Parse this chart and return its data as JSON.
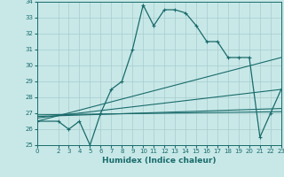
{
  "title": "",
  "xlabel": "Humidex (Indice chaleur)",
  "xlim": [
    0,
    23
  ],
  "ylim": [
    25,
    34
  ],
  "yticks": [
    25,
    26,
    27,
    28,
    29,
    30,
    31,
    32,
    33,
    34
  ],
  "xticks": [
    0,
    2,
    3,
    4,
    5,
    6,
    7,
    8,
    9,
    10,
    11,
    12,
    13,
    14,
    15,
    16,
    17,
    18,
    19,
    20,
    21,
    22,
    23
  ],
  "bg_color": "#c8e8e8",
  "grid_color": "#a8cccc",
  "line_color": "#1a6b6b",
  "line1_x": [
    0,
    2,
    3,
    4,
    5,
    6,
    7,
    8,
    9,
    10,
    11,
    12,
    13,
    14,
    15,
    16,
    17,
    18,
    19,
    20,
    21,
    22,
    23
  ],
  "line1_y": [
    26.5,
    26.5,
    26.0,
    26.5,
    25.0,
    27.0,
    28.5,
    29.0,
    31.0,
    33.8,
    32.5,
    33.5,
    33.5,
    33.3,
    32.5,
    31.5,
    31.5,
    30.5,
    30.5,
    30.5,
    25.5,
    27.0,
    28.5
  ],
  "line2_x": [
    0,
    23
  ],
  "line2_y": [
    26.5,
    30.5
  ],
  "line3_x": [
    0,
    23
  ],
  "line3_y": [
    26.7,
    28.5
  ],
  "line4_x": [
    0,
    23
  ],
  "line4_y": [
    26.8,
    27.3
  ],
  "line5_x": [
    0,
    23
  ],
  "line5_y": [
    26.9,
    27.1
  ]
}
